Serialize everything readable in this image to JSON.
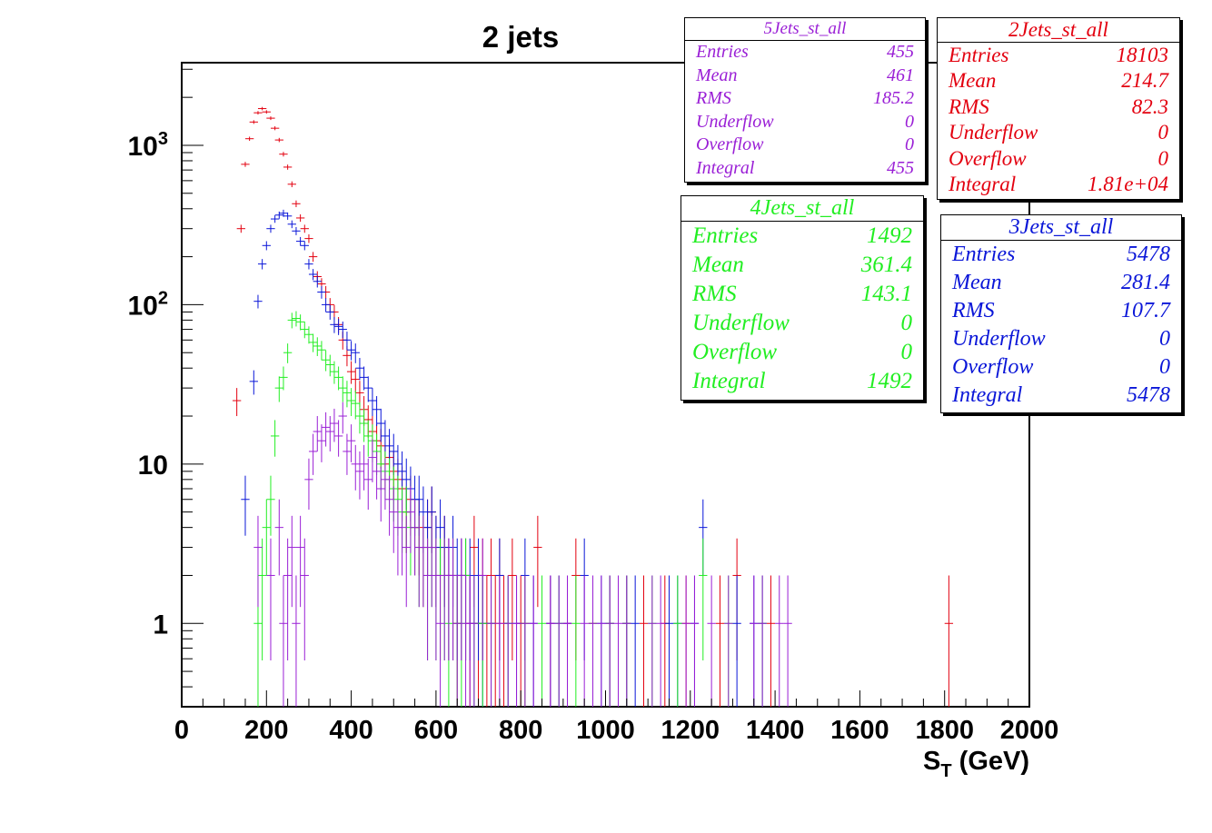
{
  "title": "2 jets",
  "chart_data": {
    "type": "scatter",
    "title": "2 jets",
    "xlabel_main": "S",
    "xlabel_sub": "T",
    "xlabel_unit": "(GeV)",
    "xlim": [
      0,
      2000
    ],
    "ylim": [
      0.3,
      3300
    ],
    "yscale": "log",
    "bin_width": 20,
    "x_ticks": [
      "0",
      "200",
      "400",
      "600",
      "800",
      "1000",
      "1200",
      "1400",
      "1600",
      "1800",
      "2000"
    ],
    "y_ticks": [
      {
        "value": 1,
        "base": "1",
        "exp": ""
      },
      {
        "value": 10,
        "base": "10",
        "exp": ""
      },
      {
        "value": 100,
        "base": "10",
        "exp": "2"
      },
      {
        "value": 1000,
        "base": "10",
        "exp": "3"
      }
    ],
    "series": [
      {
        "name": "2Jets_st_all",
        "color": "#e3000f",
        "points": [
          [
            120,
            25
          ],
          [
            130,
            300
          ],
          [
            140,
            760
          ],
          [
            150,
            1100
          ],
          [
            160,
            1400
          ],
          [
            170,
            1600
          ],
          [
            180,
            1700
          ],
          [
            190,
            1620
          ],
          [
            200,
            1480
          ],
          [
            210,
            1280
          ],
          [
            220,
            1080
          ],
          [
            230,
            880
          ],
          [
            240,
            730
          ],
          [
            250,
            570
          ],
          [
            260,
            430
          ],
          [
            270,
            350
          ],
          [
            280,
            300
          ],
          [
            290,
            260
          ],
          [
            300,
            200
          ],
          [
            310,
            150
          ],
          [
            320,
            135
          ],
          [
            330,
            120
          ],
          [
            340,
            100
          ],
          [
            350,
            90
          ],
          [
            360,
            75
          ],
          [
            370,
            60
          ],
          [
            380,
            48
          ],
          [
            390,
            38
          ],
          [
            400,
            34
          ],
          [
            410,
            28
          ],
          [
            420,
            22
          ],
          [
            430,
            19
          ],
          [
            440,
            16
          ],
          [
            450,
            14
          ],
          [
            460,
            13
          ],
          [
            470,
            10
          ],
          [
            480,
            11
          ],
          [
            490,
            9
          ],
          [
            500,
            8
          ],
          [
            510,
            7
          ],
          [
            520,
            5
          ],
          [
            530,
            6
          ],
          [
            540,
            4
          ],
          [
            550,
            4
          ],
          [
            560,
            3
          ],
          [
            570,
            4
          ],
          [
            580,
            5
          ],
          [
            590,
            3
          ],
          [
            600,
            2
          ],
          [
            610,
            3
          ],
          [
            620,
            2
          ],
          [
            630,
            2
          ],
          [
            640,
            1
          ],
          [
            650,
            2
          ],
          [
            660,
            2
          ],
          [
            670,
            1
          ],
          [
            680,
            3
          ],
          [
            690,
            1
          ],
          [
            700,
            2
          ],
          [
            710,
            1
          ],
          [
            720,
            2
          ],
          [
            730,
            1
          ],
          [
            740,
            2
          ],
          [
            750,
            1
          ],
          [
            770,
            2
          ],
          [
            790,
            1
          ],
          [
            800,
            1
          ],
          [
            830,
            3
          ],
          [
            860,
            1
          ],
          [
            900,
            1
          ],
          [
            920,
            2
          ],
          [
            960,
            1
          ],
          [
            1000,
            1
          ],
          [
            1040,
            1
          ],
          [
            1080,
            1
          ],
          [
            1130,
            1
          ],
          [
            1180,
            1
          ],
          [
            1260,
            1
          ],
          [
            1300,
            2
          ],
          [
            1380,
            1
          ],
          [
            1800,
            1
          ]
        ]
      },
      {
        "name": "3Jets_st_all",
        "color": "#0a16d8",
        "points": [
          [
            140,
            6
          ],
          [
            160,
            33
          ],
          [
            170,
            105
          ],
          [
            180,
            180
          ],
          [
            190,
            235
          ],
          [
            200,
            300
          ],
          [
            210,
            345
          ],
          [
            220,
            365
          ],
          [
            230,
            375
          ],
          [
            240,
            360
          ],
          [
            250,
            320
          ],
          [
            260,
            290
          ],
          [
            270,
            250
          ],
          [
            280,
            235
          ],
          [
            290,
            180
          ],
          [
            300,
            155
          ],
          [
            310,
            140
          ],
          [
            320,
            120
          ],
          [
            330,
            100
          ],
          [
            340,
            90
          ],
          [
            350,
            75
          ],
          [
            360,
            73
          ],
          [
            370,
            70
          ],
          [
            380,
            60
          ],
          [
            390,
            52
          ],
          [
            400,
            50
          ],
          [
            410,
            40
          ],
          [
            420,
            35
          ],
          [
            430,
            30
          ],
          [
            440,
            25
          ],
          [
            450,
            22
          ],
          [
            460,
            18
          ],
          [
            470,
            15
          ],
          [
            480,
            13
          ],
          [
            490,
            12
          ],
          [
            500,
            10
          ],
          [
            510,
            9
          ],
          [
            520,
            8
          ],
          [
            530,
            7
          ],
          [
            540,
            6
          ],
          [
            550,
            6
          ],
          [
            560,
            5
          ],
          [
            570,
            4
          ],
          [
            580,
            5
          ],
          [
            590,
            3
          ],
          [
            600,
            4
          ],
          [
            610,
            3
          ],
          [
            620,
            2
          ],
          [
            630,
            3
          ],
          [
            640,
            2
          ],
          [
            650,
            2
          ],
          [
            660,
            2
          ],
          [
            670,
            2
          ],
          [
            680,
            1
          ],
          [
            690,
            2
          ],
          [
            700,
            1
          ],
          [
            720,
            1
          ],
          [
            740,
            2
          ],
          [
            760,
            1
          ],
          [
            780,
            1
          ],
          [
            800,
            2
          ],
          [
            820,
            1
          ],
          [
            860,
            1
          ],
          [
            880,
            1
          ],
          [
            900,
            1
          ],
          [
            940,
            2
          ],
          [
            980,
            1
          ],
          [
            1000,
            1
          ],
          [
            1040,
            1
          ],
          [
            1060,
            1
          ],
          [
            1140,
            1
          ],
          [
            1160,
            1
          ],
          [
            1200,
            1
          ],
          [
            1220,
            4
          ],
          [
            1300,
            1
          ],
          [
            1340,
            1
          ],
          [
            1360,
            1
          ]
        ]
      },
      {
        "name": "4Jets_st_all",
        "color": "#22ee22",
        "points": [
          [
            170,
            1
          ],
          [
            180,
            2
          ],
          [
            190,
            4
          ],
          [
            200,
            6
          ],
          [
            210,
            15
          ],
          [
            220,
            30
          ],
          [
            230,
            35
          ],
          [
            240,
            50
          ],
          [
            250,
            80
          ],
          [
            260,
            82
          ],
          [
            270,
            78
          ],
          [
            280,
            70
          ],
          [
            290,
            65
          ],
          [
            300,
            58
          ],
          [
            310,
            55
          ],
          [
            320,
            52
          ],
          [
            330,
            45
          ],
          [
            340,
            42
          ],
          [
            350,
            38
          ],
          [
            360,
            35
          ],
          [
            370,
            30
          ],
          [
            380,
            28
          ],
          [
            390,
            25
          ],
          [
            400,
            24
          ],
          [
            410,
            20
          ],
          [
            420,
            18
          ],
          [
            430,
            15
          ],
          [
            440,
            14
          ],
          [
            450,
            12
          ],
          [
            460,
            10
          ],
          [
            470,
            9
          ],
          [
            480,
            8
          ],
          [
            490,
            7
          ],
          [
            500,
            6
          ],
          [
            510,
            5
          ],
          [
            520,
            5
          ],
          [
            530,
            4
          ],
          [
            540,
            4
          ],
          [
            550,
            3
          ],
          [
            560,
            3
          ],
          [
            570,
            2
          ],
          [
            580,
            3
          ],
          [
            590,
            2
          ],
          [
            600,
            2
          ],
          [
            610,
            2
          ],
          [
            620,
            1
          ],
          [
            630,
            2
          ],
          [
            640,
            1
          ],
          [
            650,
            1
          ],
          [
            660,
            2
          ],
          [
            680,
            1
          ],
          [
            700,
            1
          ],
          [
            720,
            1
          ],
          [
            760,
            1
          ],
          [
            800,
            1
          ],
          [
            840,
            1
          ],
          [
            880,
            1
          ],
          [
            920,
            1
          ],
          [
            960,
            1
          ],
          [
            1000,
            1
          ],
          [
            1040,
            1
          ],
          [
            1100,
            1
          ],
          [
            1160,
            1
          ],
          [
            1220,
            2
          ],
          [
            1280,
            1
          ],
          [
            1360,
            1
          ]
        ]
      },
      {
        "name": "5Jets_st_all",
        "color": "#9a1fd6",
        "points": [
          [
            170,
            3
          ],
          [
            200,
            2
          ],
          [
            220,
            4
          ],
          [
            230,
            1
          ],
          [
            240,
            2
          ],
          [
            250,
            3
          ],
          [
            260,
            1
          ],
          [
            270,
            3
          ],
          [
            280,
            2
          ],
          [
            290,
            8
          ],
          [
            300,
            12
          ],
          [
            310,
            16
          ],
          [
            320,
            14
          ],
          [
            330,
            17
          ],
          [
            340,
            16
          ],
          [
            350,
            18
          ],
          [
            360,
            15
          ],
          [
            370,
            20
          ],
          [
            380,
            12
          ],
          [
            390,
            14
          ],
          [
            400,
            10
          ],
          [
            410,
            9
          ],
          [
            420,
            10
          ],
          [
            430,
            8
          ],
          [
            440,
            11
          ],
          [
            450,
            9
          ],
          [
            460,
            7
          ],
          [
            470,
            8
          ],
          [
            480,
            6
          ],
          [
            490,
            5
          ],
          [
            500,
            4
          ],
          [
            510,
            4
          ],
          [
            520,
            3
          ],
          [
            530,
            5
          ],
          [
            540,
            4
          ],
          [
            550,
            3
          ],
          [
            560,
            3
          ],
          [
            570,
            2
          ],
          [
            580,
            3
          ],
          [
            590,
            2
          ],
          [
            600,
            1
          ],
          [
            610,
            2
          ],
          [
            620,
            2
          ],
          [
            630,
            2
          ],
          [
            640,
            1
          ],
          [
            650,
            2
          ],
          [
            660,
            1
          ],
          [
            670,
            1
          ],
          [
            680,
            1
          ],
          [
            700,
            2
          ],
          [
            720,
            1
          ],
          [
            740,
            1
          ],
          [
            760,
            1
          ],
          [
            780,
            1
          ],
          [
            800,
            1
          ],
          [
            820,
            1
          ],
          [
            860,
            1
          ],
          [
            880,
            1
          ],
          [
            900,
            1
          ],
          [
            940,
            1
          ],
          [
            960,
            1
          ],
          [
            980,
            1
          ],
          [
            1000,
            1
          ],
          [
            1020,
            1
          ],
          [
            1040,
            1
          ],
          [
            1100,
            1
          ],
          [
            1120,
            1
          ],
          [
            1180,
            1
          ],
          [
            1200,
            1
          ],
          [
            1240,
            1
          ],
          [
            1280,
            1
          ],
          [
            1340,
            1
          ],
          [
            1360,
            1
          ],
          [
            1400,
            1
          ],
          [
            1420,
            1
          ]
        ]
      }
    ]
  },
  "stat_boxes": {
    "s5": {
      "title": "5Jets_st_all",
      "entries_label": "Entries",
      "entries": "455",
      "mean_label": "Mean",
      "mean": "461",
      "rms_label": "RMS",
      "rms": "185.2",
      "underflow_label": "Underflow",
      "underflow": "0",
      "overflow_label": "Overflow",
      "overflow": "0",
      "integral_label": "Integral",
      "integral": "455"
    },
    "s2": {
      "title": "2Jets_st_all",
      "entries_label": "Entries",
      "entries": "18103",
      "mean_label": "Mean",
      "mean": "214.7",
      "rms_label": "RMS",
      "rms": "82.3",
      "underflow_label": "Underflow",
      "underflow": "0",
      "overflow_label": "Overflow",
      "overflow": "0",
      "integral_label": "Integral",
      "integral": "1.81e+04"
    },
    "s4": {
      "title": "4Jets_st_all",
      "entries_label": "Entries",
      "entries": "1492",
      "mean_label": "Mean",
      "mean": "361.4",
      "rms_label": "RMS",
      "rms": "143.1",
      "underflow_label": "Underflow",
      "underflow": "0",
      "overflow_label": "Overflow",
      "overflow": "0",
      "integral_label": "Integral",
      "integral": "1492"
    },
    "s3": {
      "title": "3Jets_st_all",
      "entries_label": "Entries",
      "entries": "5478",
      "mean_label": "Mean",
      "mean": "281.4",
      "rms_label": "RMS",
      "rms": "107.7",
      "underflow_label": "Underflow",
      "underflow": "0",
      "overflow_label": "Overflow",
      "overflow": "0",
      "integral_label": "Integral",
      "integral": "5478"
    }
  }
}
